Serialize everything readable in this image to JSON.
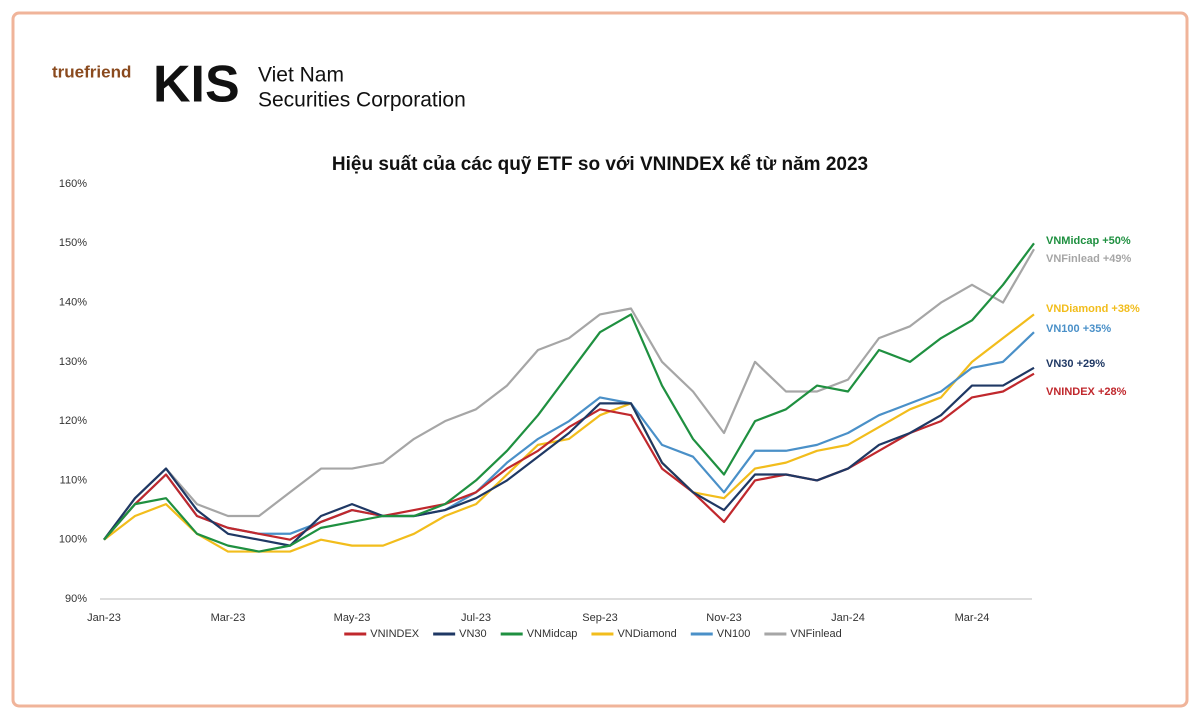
{
  "header": {
    "slogan": "truefriend",
    "brand": "KIS",
    "company_line1": "Viet Nam",
    "company_line2": "Securities Corporation"
  },
  "chart_data": {
    "type": "line",
    "title": "Hiệu suất của các quỹ ETF so với VNINDEX kể từ năm 2023",
    "categories": [
      "Jan-23",
      null,
      null,
      null,
      "Mar-23",
      null,
      null,
      null,
      "May-23",
      null,
      null,
      null,
      "Jul-23",
      null,
      null,
      null,
      "Sep-23",
      null,
      null,
      null,
      "Nov-23",
      null,
      null,
      null,
      "Jan-24",
      null,
      null,
      null,
      "Mar-24",
      null,
      null
    ],
    "ylim": [
      90,
      160
    ],
    "yticks": [
      {
        "value": 90,
        "label": "90%"
      },
      {
        "value": 100,
        "label": "100%"
      },
      {
        "value": 110,
        "label": "110%"
      },
      {
        "value": 120,
        "label": "120%"
      },
      {
        "value": 130,
        "label": "130%"
      },
      {
        "value": 140,
        "label": "140%"
      },
      {
        "value": 150,
        "label": "150%"
      },
      {
        "value": 160,
        "label": "160%"
      }
    ],
    "grid": false,
    "legend": "bottom",
    "series": [
      {
        "name": "VNINDEX",
        "color": "#c0282d",
        "label": "VNINDEX +28%",
        "values": [
          100,
          106,
          111,
          104,
          102,
          101,
          100,
          103,
          105,
          104,
          105,
          106,
          108,
          112,
          115,
          119,
          122,
          121,
          112,
          108,
          103,
          110,
          111,
          110,
          112,
          115,
          118,
          120,
          124,
          125,
          128
        ]
      },
      {
        "name": "VN30",
        "color": "#1f3864",
        "label": "VN30 +29%",
        "values": [
          100,
          107,
          112,
          105,
          101,
          100,
          99,
          104,
          106,
          104,
          104,
          105,
          107,
          110,
          114,
          118,
          123,
          123,
          113,
          108,
          105,
          111,
          111,
          110,
          112,
          116,
          118,
          121,
          126,
          126,
          129
        ]
      },
      {
        "name": "VNMidcap",
        "color": "#1f9040",
        "label": "VNMidcap +50%",
        "values": [
          100,
          106,
          107,
          101,
          99,
          98,
          99,
          102,
          103,
          104,
          104,
          106,
          110,
          115,
          121,
          128,
          135,
          138,
          126,
          117,
          111,
          120,
          122,
          126,
          125,
          132,
          130,
          134,
          137,
          143,
          150
        ]
      },
      {
        "name": "VNDiamond",
        "color": "#f2bd1c",
        "label": "VNDiamond +38%",
        "values": [
          100,
          104,
          106,
          101,
          98,
          98,
          98,
          100,
          99,
          99,
          101,
          104,
          106,
          111,
          116,
          117,
          121,
          123,
          113,
          108,
          107,
          112,
          113,
          115,
          116,
          119,
          122,
          124,
          130,
          134,
          138
        ]
      },
      {
        "name": "VN100",
        "color": "#4a90c8",
        "label": "VN100 +35%",
        "values": [
          100,
          106,
          111,
          104,
          102,
          101,
          101,
          103,
          105,
          104,
          104,
          105,
          108,
          113,
          117,
          120,
          124,
          123,
          116,
          114,
          108,
          115,
          115,
          116,
          118,
          121,
          123,
          125,
          129,
          130,
          135
        ]
      },
      {
        "name": "VNFinlead",
        "color": "#a6a6a6",
        "label": "VNFinlead +49%",
        "values": [
          100,
          107,
          112,
          106,
          104,
          104,
          108,
          112,
          112,
          113,
          117,
          120,
          122,
          126,
          132,
          134,
          138,
          139,
          130,
          125,
          118,
          130,
          125,
          125,
          127,
          134,
          136,
          140,
          143,
          140,
          149
        ]
      }
    ]
  }
}
